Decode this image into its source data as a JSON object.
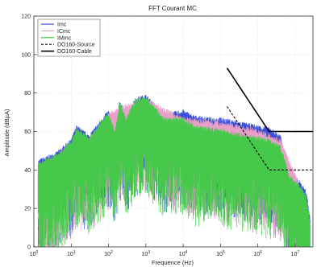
{
  "chart_data": {
    "type": "line",
    "title": "FFT Courant MC",
    "xlabel": "Frequence (Hz)",
    "ylabel": "Amplitude (dBµA)",
    "xscale": "log",
    "xlim": [
      1,
      30000000
    ],
    "ylim": [
      0,
      120
    ],
    "x_tick_labels": [
      "10^0",
      "10^1",
      "10^2",
      "10^3",
      "10^4",
      "10^5",
      "10^6",
      "10^7"
    ],
    "y_ticks": [
      0,
      20,
      40,
      60,
      80,
      100,
      120
    ],
    "grid": true,
    "legend_position": "top-left",
    "series": [
      {
        "name": "Imc",
        "color": "#3b4fd8",
        "style": "spectrum",
        "envelope_top": [
          [
            1.3,
            44
          ],
          [
            4,
            48
          ],
          [
            10,
            55
          ],
          [
            14,
            62
          ],
          [
            30,
            57
          ],
          [
            100,
            70
          ],
          [
            150,
            60
          ],
          [
            200,
            75
          ],
          [
            300,
            67
          ],
          [
            500,
            76
          ],
          [
            1000,
            78
          ],
          [
            3000,
            68
          ],
          [
            10000,
            70
          ],
          [
            20000,
            67
          ],
          [
            50000,
            66
          ],
          [
            100000,
            66
          ],
          [
            300000,
            64
          ],
          [
            1000000,
            62
          ],
          [
            2000000,
            61
          ],
          [
            4000000,
            57
          ],
          [
            7000000,
            38
          ],
          [
            12000000,
            34
          ],
          [
            20000000,
            28
          ],
          [
            25000000,
            14
          ]
        ]
      },
      {
        "name": "ICmc",
        "color": "#e8a0c8",
        "style": "spectrum",
        "envelope_top": [
          [
            1.3,
            42
          ],
          [
            4,
            46
          ],
          [
            10,
            53
          ],
          [
            14,
            60
          ],
          [
            30,
            55
          ],
          [
            100,
            68
          ],
          [
            200,
            72
          ],
          [
            500,
            74
          ],
          [
            1000,
            76
          ],
          [
            10000,
            66
          ],
          [
            100000,
            64
          ],
          [
            1000000,
            60
          ],
          [
            4000000,
            55
          ],
          [
            12000000,
            33
          ],
          [
            25000000,
            13
          ]
        ]
      },
      {
        "name": "IMmc",
        "color": "#46c94a",
        "style": "spectrum",
        "envelope_top": [
          [
            1.3,
            43
          ],
          [
            4,
            47
          ],
          [
            10,
            54
          ],
          [
            14,
            61
          ],
          [
            30,
            56
          ],
          [
            100,
            69
          ],
          [
            150,
            59
          ],
          [
            200,
            74
          ],
          [
            300,
            66
          ],
          [
            500,
            75
          ],
          [
            1000,
            77
          ],
          [
            3000,
            66
          ],
          [
            10000,
            66
          ],
          [
            20000,
            62
          ],
          [
            50000,
            61
          ],
          [
            100000,
            60
          ],
          [
            300000,
            58
          ],
          [
            1000000,
            56
          ],
          [
            2000000,
            55
          ],
          [
            4000000,
            52
          ],
          [
            7000000,
            36
          ],
          [
            12000000,
            32
          ],
          [
            20000000,
            26
          ],
          [
            25000000,
            12
          ]
        ]
      },
      {
        "name": "DO160-Source",
        "color": "#000000",
        "style": "dashed",
        "points": [
          [
            150000,
            73
          ],
          [
            2000000,
            40
          ],
          [
            30000000,
            40
          ]
        ]
      },
      {
        "name": "DO160-Cable",
        "color": "#000000",
        "style": "solid",
        "points": [
          [
            150000,
            93
          ],
          [
            2000000,
            60
          ],
          [
            30000000,
            60
          ]
        ]
      }
    ]
  }
}
